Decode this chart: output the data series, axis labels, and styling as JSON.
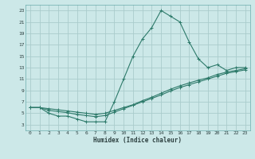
{
  "xlabel": "Humidex (Indice chaleur)",
  "bg_color": "#cce8e8",
  "grid_color": "#aacccc",
  "line_color": "#2d7a6a",
  "xlim": [
    -0.5,
    23.5
  ],
  "ylim": [
    2,
    24
  ],
  "xticks": [
    0,
    1,
    2,
    3,
    4,
    5,
    6,
    7,
    8,
    9,
    10,
    11,
    12,
    13,
    14,
    15,
    16,
    17,
    18,
    19,
    20,
    21,
    22,
    23
  ],
  "yticks": [
    3,
    5,
    7,
    9,
    11,
    13,
    15,
    17,
    19,
    21,
    23
  ],
  "line1_x": [
    0,
    1,
    2,
    3,
    4,
    5,
    6,
    7,
    8,
    9,
    10,
    11,
    12,
    13,
    14,
    15,
    16,
    17,
    18,
    19,
    20,
    21,
    22,
    23
  ],
  "line1_y": [
    6,
    6,
    5,
    4.5,
    4.5,
    4.0,
    3.5,
    3.5,
    3.5,
    7,
    11,
    15,
    18,
    20,
    23,
    22,
    21,
    17.5,
    14.5,
    13,
    13.5,
    12.5,
    13,
    13
  ],
  "line2_x": [
    0,
    1,
    2,
    3,
    4,
    5,
    6,
    7,
    8,
    9,
    10,
    11,
    12,
    13,
    14,
    15,
    16,
    17,
    18,
    19,
    20,
    21,
    22,
    23
  ],
  "line2_y": [
    6,
    6,
    5.8,
    5.6,
    5.4,
    5.2,
    5.0,
    4.8,
    5.0,
    5.5,
    6.0,
    6.5,
    7.2,
    7.8,
    8.5,
    9.2,
    9.8,
    10.3,
    10.8,
    11.2,
    11.8,
    12.2,
    12.5,
    12.8
  ],
  "line3_x": [
    0,
    1,
    2,
    3,
    4,
    5,
    6,
    7,
    8,
    9,
    10,
    11,
    12,
    13,
    14,
    15,
    16,
    17,
    18,
    19,
    20,
    21,
    22,
    23
  ],
  "line3_y": [
    6,
    6,
    5.5,
    5.3,
    5.1,
    4.8,
    4.6,
    4.4,
    4.6,
    5.2,
    5.8,
    6.4,
    7.0,
    7.6,
    8.2,
    8.9,
    9.5,
    10.0,
    10.5,
    11.0,
    11.5,
    12.0,
    12.3,
    12.6
  ]
}
